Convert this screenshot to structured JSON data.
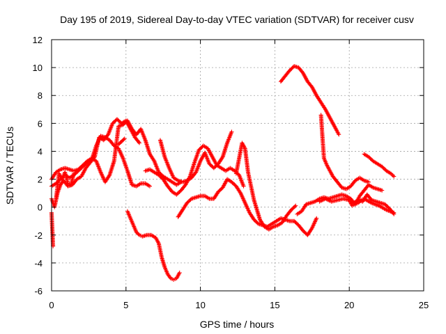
{
  "chart_data": {
    "type": "scatter",
    "title": "Day 195 of 2019, Sidereal Day-to-day VTEC variation (SDTVAR) for receiver cusv",
    "xlabel": "GPS time / hours",
    "ylabel": "SDTVAR / TECUs",
    "xlim": [
      0,
      25
    ],
    "ylim": [
      -6,
      12
    ],
    "x_ticks": [
      0,
      5,
      10,
      15,
      20,
      25
    ],
    "y_ticks": [
      -6,
      -4,
      -2,
      0,
      2,
      4,
      6,
      8,
      10,
      12
    ],
    "x_tick_labels": [
      "0",
      "5",
      "10",
      "15",
      "20",
      "25"
    ],
    "y_tick_labels": [
      "-6",
      "-4",
      "-2",
      "0",
      "2",
      "4",
      "6",
      "8",
      "10",
      "12"
    ],
    "grid": true,
    "marker": "+",
    "series_color": "#ff0000",
    "series": [
      {
        "name": "s1",
        "points": [
          [
            0,
            1.5
          ],
          [
            0.3,
            1.7
          ],
          [
            0.6,
            2.0
          ],
          [
            0.9,
            2.3
          ],
          [
            1.2,
            2.1
          ],
          [
            1.5,
            2.3
          ],
          [
            1.8,
            2.6
          ],
          [
            2.1,
            2.9
          ],
          [
            2.4,
            3.2
          ],
          [
            2.7,
            3.4
          ],
          [
            3.0,
            4.4
          ],
          [
            3.3,
            5.1
          ],
          [
            3.6,
            5.0
          ],
          [
            3.9,
            4.8
          ],
          [
            4.2,
            4.4
          ],
          [
            4.5,
            4.2
          ],
          [
            4.8,
            3.5
          ],
          [
            5.1,
            2.6
          ],
          [
            5.4,
            1.6
          ],
          [
            5.7,
            1.5
          ],
          [
            6.0,
            1.7
          ],
          [
            6.3,
            1.7
          ],
          [
            6.6,
            1.5
          ]
        ]
      },
      {
        "name": "s2",
        "points": [
          [
            0,
            2.0
          ],
          [
            0.3,
            2.5
          ],
          [
            0.6,
            2.7
          ],
          [
            0.9,
            2.8
          ],
          [
            1.2,
            2.7
          ],
          [
            1.5,
            2.6
          ],
          [
            1.8,
            2.7
          ],
          [
            2.1,
            3.0
          ],
          [
            2.4,
            3.3
          ],
          [
            2.7,
            3.5
          ],
          [
            3.0,
            3.3
          ],
          [
            3.3,
            2.5
          ],
          [
            3.6,
            1.8
          ],
          [
            3.9,
            2.3
          ],
          [
            4.2,
            3.3
          ],
          [
            4.5,
            5.8
          ],
          [
            4.8,
            5.9
          ],
          [
            5.1,
            6.2
          ],
          [
            5.4,
            5.6
          ],
          [
            5.7,
            5.2
          ],
          [
            6.0,
            5.6
          ],
          [
            6.3,
            4.8
          ],
          [
            6.6,
            3.8
          ],
          [
            6.9,
            3.3
          ],
          [
            7.2,
            2.5
          ],
          [
            7.5,
            2.2
          ],
          [
            7.8,
            2.0
          ],
          [
            8.1,
            1.8
          ],
          [
            8.4,
            1.6
          ],
          [
            8.7,
            1.8
          ]
        ]
      },
      {
        "name": "s3",
        "points": [
          [
            0,
            0.6
          ],
          [
            0.2,
            0.0
          ],
          [
            0.4,
            1.0
          ],
          [
            0.6,
            1.6
          ],
          [
            0.8,
            1.9
          ],
          [
            1.1,
            1.5
          ],
          [
            1.4,
            1.6
          ],
          [
            1.7,
            2.0
          ],
          [
            2.0,
            2.2
          ],
          [
            2.3,
            2.8
          ],
          [
            2.6,
            3.2
          ],
          [
            2.9,
            3.6
          ],
          [
            3.2,
            5.0
          ],
          [
            3.5,
            4.8
          ],
          [
            3.8,
            5.2
          ],
          [
            4.1,
            6.0
          ],
          [
            4.4,
            6.3
          ],
          [
            4.7,
            6.0
          ],
          [
            5.0,
            6.2
          ],
          [
            5.3,
            5.6
          ],
          [
            5.6,
            5.0
          ],
          [
            5.9,
            4.6
          ]
        ]
      },
      {
        "name": "s4",
        "points": [
          [
            6.3,
            2.6
          ],
          [
            6.6,
            2.7
          ],
          [
            6.9,
            2.5
          ],
          [
            7.2,
            2.3
          ],
          [
            7.5,
            2.0
          ],
          [
            7.8,
            1.5
          ],
          [
            8.1,
            1.1
          ],
          [
            8.4,
            0.9
          ],
          [
            8.7,
            1.2
          ],
          [
            9.0,
            1.6
          ],
          [
            9.3,
            2.2
          ],
          [
            9.6,
            3.2
          ],
          [
            9.9,
            4.1
          ],
          [
            10.2,
            4.4
          ],
          [
            10.5,
            4.2
          ],
          [
            10.8,
            3.6
          ],
          [
            11.1,
            3.0
          ],
          [
            11.4,
            2.8
          ],
          [
            11.7,
            2.6
          ],
          [
            12.0,
            2.8
          ],
          [
            12.3,
            2.6
          ],
          [
            12.6,
            2.3
          ],
          [
            12.9,
            1.5
          ]
        ]
      },
      {
        "name": "s5",
        "points": [
          [
            7.3,
            4.8
          ],
          [
            7.6,
            3.6
          ],
          [
            7.9,
            2.8
          ],
          [
            8.2,
            2.1
          ],
          [
            8.5,
            1.9
          ],
          [
            8.8,
            1.8
          ],
          [
            9.1,
            1.9
          ],
          [
            9.4,
            2.1
          ],
          [
            9.7,
            2.5
          ],
          [
            10.0,
            3.3
          ],
          [
            10.3,
            3.9
          ],
          [
            10.6,
            3.1
          ],
          [
            10.9,
            2.8
          ],
          [
            11.2,
            3.1
          ],
          [
            11.5,
            3.6
          ],
          [
            11.8,
            4.6
          ],
          [
            12.1,
            5.4
          ]
        ]
      },
      {
        "name": "s6",
        "points": [
          [
            8.5,
            -0.7
          ],
          [
            8.8,
            -0.2
          ],
          [
            9.1,
            0.3
          ],
          [
            9.4,
            0.6
          ],
          [
            9.7,
            0.7
          ],
          [
            10.0,
            0.8
          ],
          [
            10.3,
            0.8
          ],
          [
            10.6,
            0.6
          ],
          [
            10.9,
            0.6
          ],
          [
            11.2,
            1.1
          ],
          [
            11.5,
            1.4
          ],
          [
            11.8,
            2.0
          ],
          [
            12.1,
            1.8
          ],
          [
            12.4,
            1.5
          ],
          [
            12.7,
            1.0
          ],
          [
            13.0,
            0.3
          ],
          [
            13.3,
            -0.4
          ],
          [
            13.6,
            -0.9
          ],
          [
            13.9,
            -1.2
          ],
          [
            14.2,
            -1.3
          ],
          [
            14.5,
            -1.4
          ],
          [
            14.8,
            -1.2
          ],
          [
            15.1,
            -1.0
          ],
          [
            15.4,
            -0.8
          ],
          [
            15.7,
            -0.9
          ],
          [
            16.0,
            -1.0
          ],
          [
            16.3,
            -1.0
          ],
          [
            16.6,
            -1.3
          ],
          [
            16.9,
            -1.7
          ],
          [
            17.2,
            -2.0
          ],
          [
            17.5,
            -1.5
          ],
          [
            17.8,
            -0.8
          ]
        ]
      },
      {
        "name": "s7",
        "points": [
          [
            12.4,
            2.4
          ],
          [
            12.8,
            4.6
          ],
          [
            13.0,
            4.2
          ],
          [
            13.2,
            2.5
          ],
          [
            13.4,
            1.5
          ],
          [
            13.6,
            0.5
          ],
          [
            13.8,
            -0.2
          ],
          [
            14.0,
            -0.9
          ],
          [
            14.3,
            -1.4
          ],
          [
            14.6,
            -1.6
          ],
          [
            14.9,
            -1.4
          ],
          [
            15.2,
            -1.3
          ],
          [
            15.5,
            -1.1
          ],
          [
            15.8,
            -0.6
          ],
          [
            16.1,
            -0.2
          ],
          [
            16.4,
            0.1
          ]
        ]
      },
      {
        "name": "s8",
        "points": [
          [
            16.5,
            -0.5
          ],
          [
            16.8,
            -0.3
          ],
          [
            17.1,
            0.2
          ],
          [
            17.4,
            0.3
          ],
          [
            17.7,
            0.4
          ],
          [
            18.0,
            0.6
          ],
          [
            18.3,
            0.7
          ],
          [
            18.6,
            0.6
          ],
          [
            18.9,
            0.7
          ],
          [
            19.2,
            0.8
          ],
          [
            19.5,
            0.9
          ],
          [
            19.8,
            0.8
          ],
          [
            20.1,
            0.6
          ],
          [
            20.4,
            0.2
          ],
          [
            20.7,
            0.8
          ],
          [
            21.0,
            1.2
          ],
          [
            21.3,
            1.6
          ],
          [
            21.6,
            1.4
          ],
          [
            21.9,
            1.3
          ],
          [
            22.2,
            1.2
          ]
        ]
      },
      {
        "name": "s9",
        "points": [
          [
            15.4,
            9.0
          ],
          [
            15.7,
            9.4
          ],
          [
            16.0,
            9.8
          ],
          [
            16.3,
            10.1
          ],
          [
            16.6,
            10.0
          ],
          [
            16.9,
            9.6
          ],
          [
            17.2,
            9.0
          ],
          [
            17.5,
            8.6
          ],
          [
            17.8,
            8.0
          ],
          [
            18.1,
            7.5
          ],
          [
            18.4,
            7.0
          ],
          [
            18.7,
            6.4
          ],
          [
            19.0,
            5.8
          ],
          [
            19.3,
            5.2
          ]
        ]
      },
      {
        "name": "s10",
        "points": [
          [
            18.1,
            6.6
          ],
          [
            18.2,
            5.0
          ],
          [
            18.3,
            3.5
          ],
          [
            18.5,
            3.0
          ],
          [
            18.7,
            2.6
          ],
          [
            18.9,
            2.2
          ],
          [
            19.2,
            1.8
          ],
          [
            19.5,
            1.4
          ],
          [
            19.8,
            1.3
          ],
          [
            20.1,
            1.5
          ],
          [
            20.4,
            1.9
          ],
          [
            20.7,
            2.1
          ],
          [
            21.0,
            1.9
          ],
          [
            21.3,
            1.8
          ]
        ]
      },
      {
        "name": "s11",
        "points": [
          [
            18.0,
            0.4
          ],
          [
            18.4,
            0.6
          ],
          [
            18.8,
            0.4
          ],
          [
            19.2,
            0.5
          ],
          [
            19.6,
            0.6
          ],
          [
            20.0,
            0.5
          ],
          [
            20.3,
            0.3
          ],
          [
            20.6,
            0.5
          ],
          [
            20.9,
            0.4
          ],
          [
            21.2,
            0.9
          ],
          [
            21.5,
            0.5
          ],
          [
            21.8,
            0.4
          ],
          [
            22.1,
            0.3
          ],
          [
            22.4,
            0.2
          ],
          [
            22.7,
            -0.1
          ],
          [
            23.0,
            -0.5
          ]
        ]
      },
      {
        "name": "s12",
        "points": [
          [
            21.0,
            3.8
          ],
          [
            21.3,
            3.6
          ],
          [
            21.6,
            3.3
          ],
          [
            21.9,
            3.1
          ],
          [
            22.2,
            2.9
          ],
          [
            22.5,
            2.6
          ],
          [
            22.8,
            2.4
          ],
          [
            23.0,
            2.2
          ]
        ]
      },
      {
        "name": "s13",
        "points": [
          [
            20.0,
            0.5
          ],
          [
            20.2,
            0.1
          ],
          [
            20.4,
            0.2
          ],
          [
            20.6,
            0.3
          ],
          [
            20.8,
            0.5
          ],
          [
            21.0,
            0.6
          ],
          [
            21.5,
            0.3
          ],
          [
            22.0,
            0.1
          ],
          [
            22.5,
            -0.2
          ],
          [
            23.0,
            -0.4
          ]
        ]
      },
      {
        "name": "s14",
        "points": [
          [
            5.1,
            -0.3
          ],
          [
            5.3,
            -0.8
          ],
          [
            5.5,
            -1.3
          ],
          [
            5.7,
            -1.8
          ],
          [
            5.9,
            -2.0
          ],
          [
            6.1,
            -2.1
          ],
          [
            6.4,
            -2.0
          ],
          [
            6.7,
            -2.0
          ],
          [
            7.0,
            -2.2
          ],
          [
            7.2,
            -2.6
          ],
          [
            7.4,
            -3.6
          ],
          [
            7.6,
            -4.3
          ],
          [
            7.8,
            -4.8
          ],
          [
            8.0,
            -5.1
          ],
          [
            8.2,
            -5.2
          ],
          [
            8.4,
            -5.1
          ],
          [
            8.6,
            -4.7
          ]
        ]
      },
      {
        "name": "s15",
        "points": [
          [
            0,
            -0.4
          ],
          [
            0.1,
            -2.8
          ],
          [
            0.3,
            0.6
          ],
          [
            0.5,
            2.4
          ],
          [
            0.7,
            2.0
          ],
          [
            0.9,
            2.5
          ],
          [
            1.1,
            1.7
          ],
          [
            1.3,
            1.6
          ],
          [
            1.5,
            2.4
          ],
          [
            4.9,
            4.9
          ],
          [
            4.5,
            4.5
          ]
        ]
      }
    ]
  }
}
